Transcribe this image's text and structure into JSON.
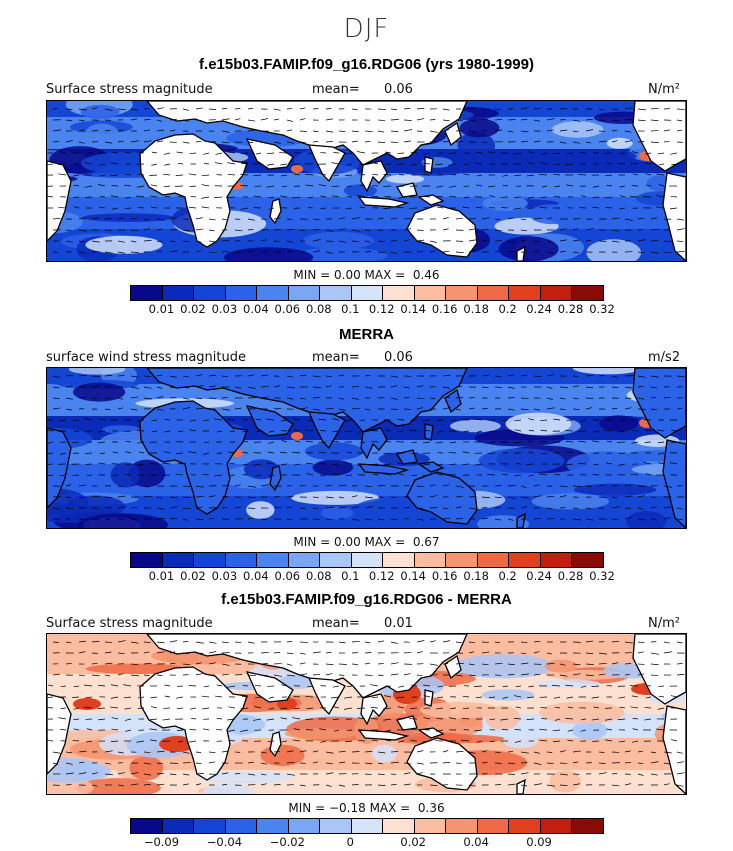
{
  "season": "DJF",
  "colors": {
    "scale": [
      "#08088a",
      "#0a2bb8",
      "#1446d6",
      "#2a62e8",
      "#4a84f0",
      "#7aa7f5",
      "#a9c6f7",
      "#d4e2fa",
      "#fde0d0",
      "#fbbca0",
      "#f5946e",
      "#ef6a44",
      "#e0401e",
      "#c0200d",
      "#8a0a05"
    ],
    "land": "#ffffff",
    "coast": "#000000"
  },
  "panels": [
    {
      "title": "f.e15b03.FAMIP.f09_g16.RDG06 (yrs 1980-1999)",
      "left_label": "Surface stress magnitude",
      "mean_label": "mean=",
      "mean_value": "0.06",
      "units": "N/m²",
      "min_label": "MIN =",
      "min_value": "0.00",
      "max_label": "MAX =",
      "max_value": "0.46",
      "ticks": [
        "0.01",
        "0.02",
        "0.03",
        "0.04",
        "0.06",
        "0.08",
        "0.1",
        "0.12",
        "0.14",
        "0.16",
        "0.18",
        "0.2",
        "0.24",
        "0.28",
        "0.32"
      ],
      "field": "model"
    },
    {
      "title": "MERRA",
      "left_label": "surface wind stress magnitude",
      "mean_label": "mean=",
      "mean_value": "0.06",
      "units": "m/s2",
      "min_label": "MIN =",
      "min_value": "0.00",
      "max_label": "MAX =",
      "max_value": "0.67",
      "ticks": [
        "0.01",
        "0.02",
        "0.03",
        "0.04",
        "0.06",
        "0.08",
        "0.1",
        "0.12",
        "0.14",
        "0.16",
        "0.18",
        "0.2",
        "0.24",
        "0.28",
        "0.32"
      ],
      "field": "obs"
    },
    {
      "title": "f.e15b03.FAMIP.f09_g16.RDG06 - MERRA",
      "left_label": "Surface stress magnitude",
      "mean_label": "mean=",
      "mean_value": "0.01",
      "units": "N/m²",
      "min_label": "MIN =",
      "min_value": "−0.18",
      "max_label": "MAX =",
      "max_value": "0.36",
      "ticks": [
        "−0.09",
        "−0.04",
        "−0.02",
        "0",
        "0.02",
        "0.04",
        "0.09"
      ],
      "field": "diff"
    }
  ]
}
